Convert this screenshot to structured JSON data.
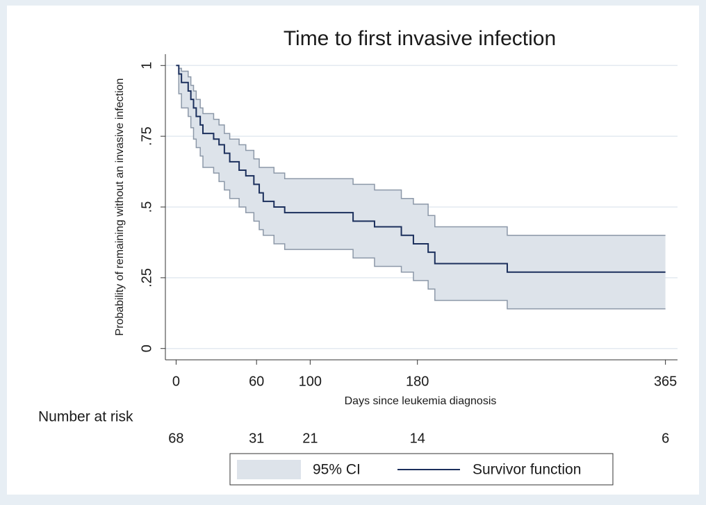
{
  "chart_data": {
    "type": "km_step",
    "title": "Time to first invasive infection",
    "x_label": "Days since leukemia diagnosis",
    "y_label": "Probability of remaining without an invasive infection",
    "xlim": [
      -8,
      374
    ],
    "ylim": [
      -0.04,
      1.04
    ],
    "xticks": [
      0,
      60,
      100,
      180,
      365
    ],
    "yticks": [
      0,
      {
        "value": 0.25,
        "label": ".25"
      },
      {
        "value": 0.5,
        "label": ".5"
      },
      {
        "value": 0.75,
        "label": ".75"
      },
      1
    ],
    "grid": true,
    "x": [
      0,
      2,
      4,
      9,
      11,
      13,
      15,
      18,
      20,
      28,
      32,
      36,
      40,
      47,
      52,
      58,
      62,
      65,
      73,
      81,
      132,
      148,
      168,
      177,
      188,
      193,
      247,
      365
    ],
    "series": [
      {
        "name": "Survivor function",
        "color": "#1b2f5c",
        "values": [
          1.0,
          0.97,
          0.94,
          0.91,
          0.88,
          0.85,
          0.82,
          0.79,
          0.76,
          0.74,
          0.72,
          0.69,
          0.66,
          0.63,
          0.61,
          0.58,
          0.55,
          0.52,
          0.5,
          0.48,
          0.45,
          0.43,
          0.4,
          0.37,
          0.34,
          0.3,
          0.27,
          0.27
        ]
      }
    ],
    "ci": {
      "name": "95% CI",
      "color": "#dde3ea",
      "edge_color": "#8c98a8",
      "lower": [
        1.0,
        0.9,
        0.85,
        0.82,
        0.78,
        0.74,
        0.71,
        0.68,
        0.64,
        0.62,
        0.59,
        0.56,
        0.53,
        0.5,
        0.48,
        0.45,
        0.42,
        0.4,
        0.37,
        0.35,
        0.32,
        0.29,
        0.27,
        0.24,
        0.21,
        0.17,
        0.14,
        0.14
      ],
      "upper": [
        1.0,
        0.99,
        0.98,
        0.96,
        0.93,
        0.91,
        0.88,
        0.85,
        0.83,
        0.81,
        0.79,
        0.76,
        0.74,
        0.72,
        0.7,
        0.67,
        0.64,
        0.64,
        0.62,
        0.6,
        0.58,
        0.56,
        0.53,
        0.51,
        0.47,
        0.43,
        0.4,
        0.4
      ]
    },
    "risk_table": {
      "label": "Number at risk",
      "x": [
        0,
        60,
        100,
        180,
        365
      ],
      "values": [
        68,
        31,
        21,
        14,
        6
      ]
    }
  }
}
